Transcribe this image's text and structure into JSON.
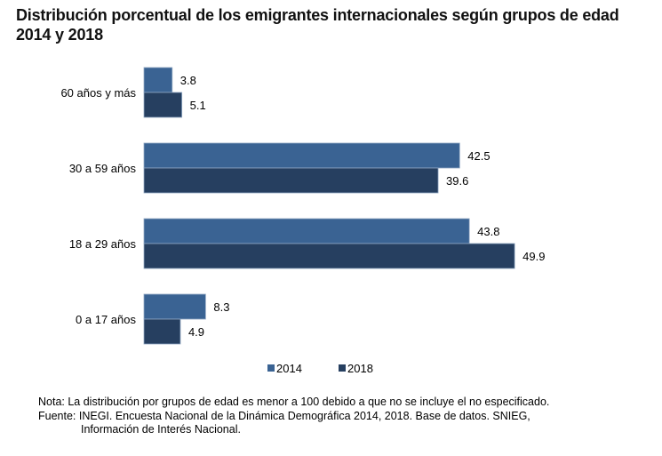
{
  "chart_data": {
    "type": "bar",
    "orientation": "horizontal",
    "title": "Distribución porcentual de los emigrantes internacionales según grupos de edad",
    "subtitle": "2014 y 2018",
    "categories": [
      "60 años y más",
      "30 a 59 años",
      "18 a 29 años",
      "0 a 17 años"
    ],
    "series": [
      {
        "name": "2014",
        "color": "#3A6393",
        "values": [
          3.8,
          42.5,
          43.8,
          8.3
        ]
      },
      {
        "name": "2018",
        "color": "#263F60",
        "values": [
          5.1,
          39.6,
          49.9,
          4.9
        ]
      }
    ],
    "data_labels": {
      "2014": [
        "3.8",
        "42.5",
        "43.8",
        "8.3"
      ],
      "2018": [
        "5.1",
        "39.6",
        "49.9",
        "4.9"
      ]
    },
    "xlabel": "",
    "ylabel": "",
    "xlim": [
      0,
      50
    ],
    "grid": false,
    "legend": {
      "position": "bottom-center",
      "entries": [
        "2014",
        "2018"
      ]
    }
  },
  "notes": {
    "nota": "Nota: La distribución por grupos de edad es menor a 100 debido a que no se incluye el no especificado.",
    "fuente_line1": "Fuente: INEGI. Encuesta Nacional de la Dinámica Demográfica 2014, 2018. Base de datos. SNIEG,",
    "fuente_line2": "Información de Interés Nacional."
  }
}
